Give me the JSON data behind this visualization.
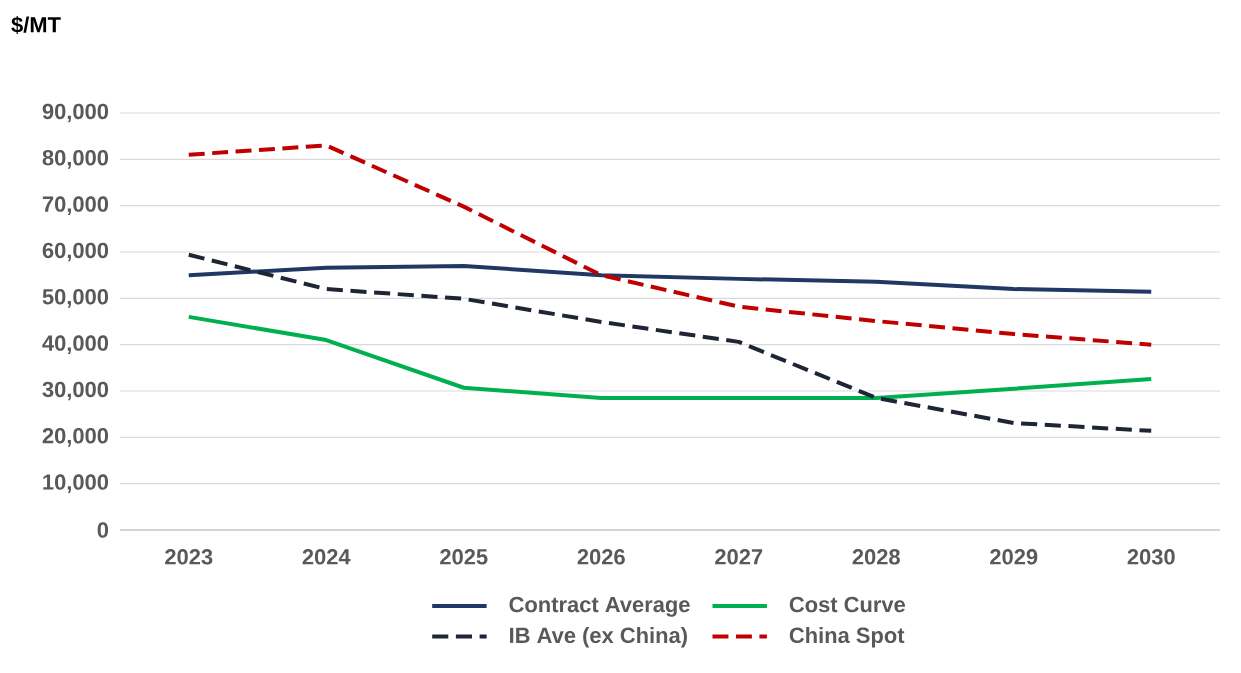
{
  "chart_data": {
    "type": "line",
    "ylabel": "$/MT",
    "categories": [
      "2023",
      "2024",
      "2025",
      "2026",
      "2027",
      "2028",
      "2029",
      "2030"
    ],
    "series": [
      {
        "name": "Contract Average",
        "color": "#203864",
        "line_style": "solid",
        "values": [
          55000,
          56600,
          57000,
          55000,
          54200,
          53600,
          52000,
          51400
        ]
      },
      {
        "name": "Cost Curve",
        "color": "#00b050",
        "line_style": "solid",
        "values": [
          46000,
          41000,
          30700,
          28500,
          28500,
          28500,
          30500,
          32600
        ]
      },
      {
        "name": "IB Ave (ex China)",
        "color": "#1e2535",
        "line_style": "dashed",
        "values": [
          59400,
          52000,
          49900,
          44900,
          40600,
          28500,
          23100,
          21400
        ]
      },
      {
        "name": "China Spot",
        "color": "#c00000",
        "line_style": "dashed",
        "values": [
          81000,
          83000,
          69800,
          55000,
          48200,
          45100,
          42300,
          40000
        ]
      }
    ],
    "ylim": [
      0,
      90000
    ],
    "yticks": [
      {
        "value": 0,
        "label": "0"
      },
      {
        "value": 10000,
        "label": "10,000"
      },
      {
        "value": 20000,
        "label": "20,000"
      },
      {
        "value": 30000,
        "label": "30,000"
      },
      {
        "value": 40000,
        "label": "40,000"
      },
      {
        "value": 50000,
        "label": "50,000"
      },
      {
        "value": 60000,
        "label": "60,000"
      },
      {
        "value": 70000,
        "label": "70,000"
      },
      {
        "value": 80000,
        "label": "80,000"
      },
      {
        "value": 90000,
        "label": "90,000"
      }
    ],
    "grid": "y",
    "legend": "bottom",
    "marker": "none"
  }
}
